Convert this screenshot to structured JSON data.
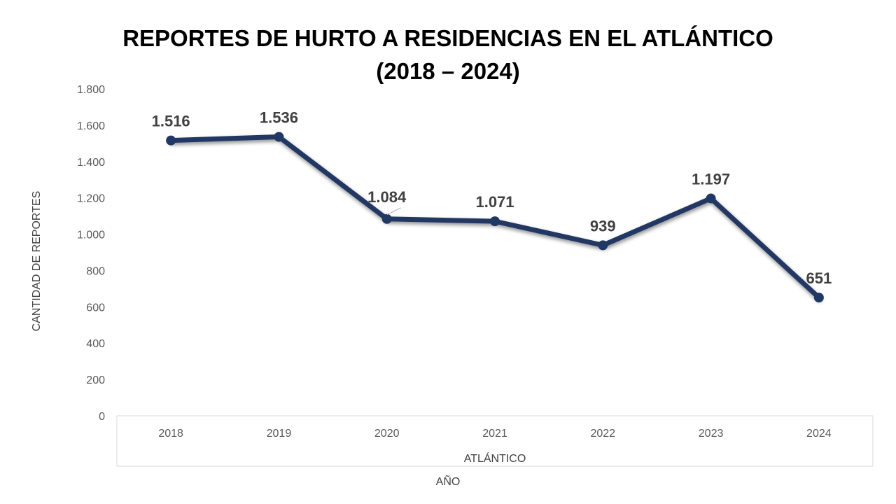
{
  "chart_data": {
    "type": "line",
    "title": [
      "REPORTES DE HURTO A RESIDENCIAS EN EL ATLÁNTICO",
      "(2018 – 2024)"
    ],
    "xlabel": "AÑO",
    "xgroup_label": "ATLÁNTICO",
    "ylabel": "CANTIDAD DE REPORTES",
    "categories": [
      "2018",
      "2019",
      "2020",
      "2021",
      "2022",
      "2023",
      "2024"
    ],
    "series": [
      {
        "values": [
          1516,
          1536,
          1084,
          1071,
          939,
          1197,
          651
        ],
        "data_labels": [
          "1.516",
          "1.536",
          "1.084",
          "1.071",
          "939",
          "1.197",
          "651"
        ],
        "color": "#203864"
      }
    ],
    "ylim": [
      0,
      1800
    ],
    "yticks": [
      0,
      200,
      400,
      600,
      800,
      1000,
      1200,
      1400,
      1600,
      1800
    ],
    "ytick_labels": [
      "0",
      "200",
      "400",
      "600",
      "800",
      "1.000",
      "1.200",
      "1.400",
      "1.600",
      "1.800"
    ],
    "grid": false,
    "legend": "none"
  }
}
